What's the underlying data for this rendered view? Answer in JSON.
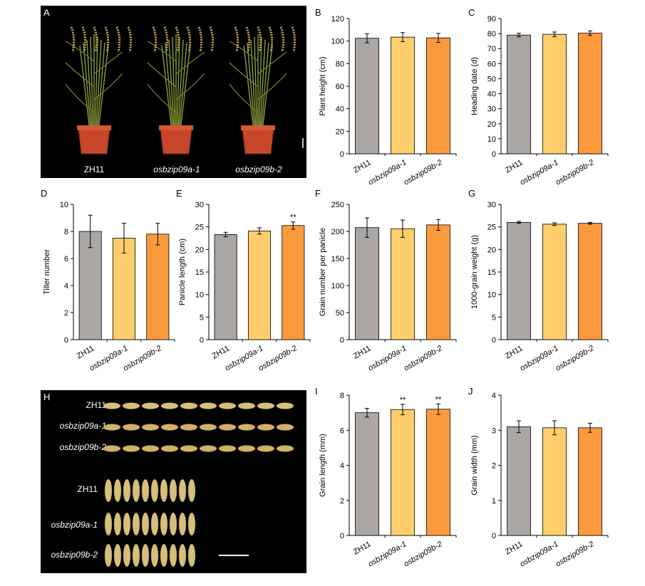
{
  "panel_a": {
    "letter": "A",
    "labels": [
      "ZH11",
      "osbzip09a-1",
      "osbzip09b-2"
    ]
  },
  "panel_h": {
    "letter": "H",
    "length_rows": [
      "ZH11",
      "osbzip09a-1",
      "osbzip09b-2"
    ],
    "width_rows": [
      "ZH11",
      "osbzip09a-1",
      "osbzip09b-2"
    ]
  },
  "colors": {
    "ZH11": "#aaa6a3",
    "osbzip09a-1": "#fece6c",
    "osbzip09b-2": "#fb9a3c"
  },
  "chart_data": [
    {
      "panel": "B",
      "type": "bar",
      "categories": [
        "ZH11",
        "osbzip09a-1",
        "osbzip09b-2"
      ],
      "values": [
        102.5,
        103.5,
        102.8
      ],
      "errors": [
        4,
        4,
        4
      ],
      "ylabel": "Plant height (cm)",
      "ylim": [
        0,
        120
      ],
      "yticks": [
        0,
        20,
        40,
        60,
        80,
        100,
        120
      ],
      "sig": [
        "",
        "",
        ""
      ]
    },
    {
      "panel": "C",
      "type": "bar",
      "categories": [
        "ZH11",
        "osbzip09a-1",
        "osbzip09b-2"
      ],
      "values": [
        79,
        79.5,
        80.3
      ],
      "errors": [
        1.2,
        1.5,
        1.5
      ],
      "ylabel": "Heading date (d)",
      "ylim": [
        0,
        90
      ],
      "yticks": [
        0,
        10,
        20,
        30,
        40,
        50,
        60,
        70,
        80,
        90
      ],
      "sig": [
        "",
        "",
        ""
      ]
    },
    {
      "panel": "D",
      "type": "bar",
      "categories": [
        "ZH11",
        "osbzip09a-1",
        "osbzip09b-2"
      ],
      "values": [
        8.0,
        7.5,
        7.8
      ],
      "errors": [
        1.2,
        1.1,
        0.8
      ],
      "ylabel": "Tiller number",
      "ylim": [
        0,
        10
      ],
      "yticks": [
        0,
        2,
        4,
        6,
        8,
        10
      ],
      "sig": [
        "",
        "",
        ""
      ]
    },
    {
      "panel": "E",
      "type": "bar",
      "categories": [
        "ZH11",
        "osbzip09a-1",
        "osbzip09b-2"
      ],
      "values": [
        23.3,
        24.1,
        25.3
      ],
      "errors": [
        0.5,
        0.7,
        0.8
      ],
      "ylabel": "Panicle length (cm)",
      "ylim": [
        0,
        30
      ],
      "yticks": [
        0,
        5,
        10,
        15,
        20,
        25,
        30
      ],
      "sig": [
        "",
        "",
        "**"
      ]
    },
    {
      "panel": "F",
      "type": "bar",
      "categories": [
        "ZH11",
        "osbzip09a-1",
        "osbzip09b-2"
      ],
      "values": [
        207,
        205,
        212
      ],
      "errors": [
        18,
        16,
        10
      ],
      "ylabel": "Grain number per panicle",
      "ylim": [
        0,
        250
      ],
      "yticks": [
        0,
        50,
        100,
        150,
        200,
        250
      ],
      "sig": [
        "",
        "",
        ""
      ]
    },
    {
      "panel": "G",
      "type": "bar",
      "categories": [
        "ZH11",
        "osbzip09a-1",
        "osbzip09b-2"
      ],
      "values": [
        26.0,
        25.6,
        25.8
      ],
      "errors": [
        0.2,
        0.3,
        0.2
      ],
      "ylabel": "1000-grain weight (g)",
      "ylim": [
        0,
        30
      ],
      "yticks": [
        0,
        5,
        10,
        15,
        20,
        25,
        30
      ],
      "sig": [
        "",
        "",
        ""
      ]
    },
    {
      "panel": "I",
      "type": "bar",
      "categories": [
        "ZH11",
        "osbzip09a-1",
        "osbzip09b-2"
      ],
      "values": [
        7.0,
        7.18,
        7.2
      ],
      "errors": [
        0.25,
        0.3,
        0.3
      ],
      "ylabel": "Grain length (mm)",
      "ylim": [
        0,
        8
      ],
      "yticks": [
        0,
        2,
        4,
        6,
        8
      ],
      "sig": [
        "",
        "**",
        "**"
      ]
    },
    {
      "panel": "J",
      "type": "bar",
      "categories": [
        "ZH11",
        "osbzip09a-1",
        "osbzip09b-2"
      ],
      "values": [
        3.1,
        3.07,
        3.07
      ],
      "errors": [
        0.17,
        0.2,
        0.13
      ],
      "ylabel": "Grain width (mm)",
      "ylim": [
        0,
        4
      ],
      "yticks": [
        0,
        1,
        2,
        3,
        4
      ],
      "sig": [
        "",
        "",
        ""
      ]
    }
  ]
}
